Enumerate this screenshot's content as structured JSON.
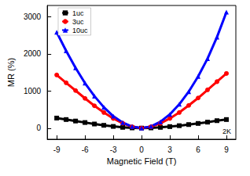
{
  "chart_data": {
    "type": "line",
    "x_label": "Magnetic Field (T)",
    "y_label": "MR (%)",
    "annotation": "2K",
    "x": [
      -9,
      -8,
      -7,
      -6,
      -5,
      -4,
      -3,
      -2,
      -1,
      0,
      1,
      2,
      3,
      4,
      5,
      6,
      7,
      8,
      9
    ],
    "series": [
      {
        "name": "1uc",
        "color": "#000000",
        "marker": "square",
        "values": [
          270,
          230,
          190,
          150,
          110,
          75,
          45,
          20,
          5,
          0,
          5,
          20,
          40,
          65,
          95,
          125,
          160,
          200,
          230
        ]
      },
      {
        "name": "3uc",
        "color": "#ff0000",
        "marker": "circle",
        "values": [
          1430,
          1220,
          1010,
          800,
          600,
          420,
          260,
          130,
          35,
          0,
          35,
          130,
          260,
          420,
          610,
          810,
          1030,
          1250,
          1470
        ]
      },
      {
        "name": "10uc",
        "color": "#0000ff",
        "marker": "triangle",
        "values": [
          2580,
          2080,
          1620,
          1210,
          860,
          560,
          320,
          150,
          40,
          0,
          45,
          170,
          370,
          640,
          980,
          1390,
          1870,
          2450,
          3120
        ]
      }
    ],
    "xlim": [
      -10,
      10
    ],
    "xticks": [
      -9,
      -6,
      -3,
      0,
      3,
      6,
      9
    ],
    "ylim": [
      -300,
      3300
    ],
    "yticks": [
      0,
      1000,
      2000,
      3000
    ],
    "legend": "upper left",
    "grid": false
  }
}
